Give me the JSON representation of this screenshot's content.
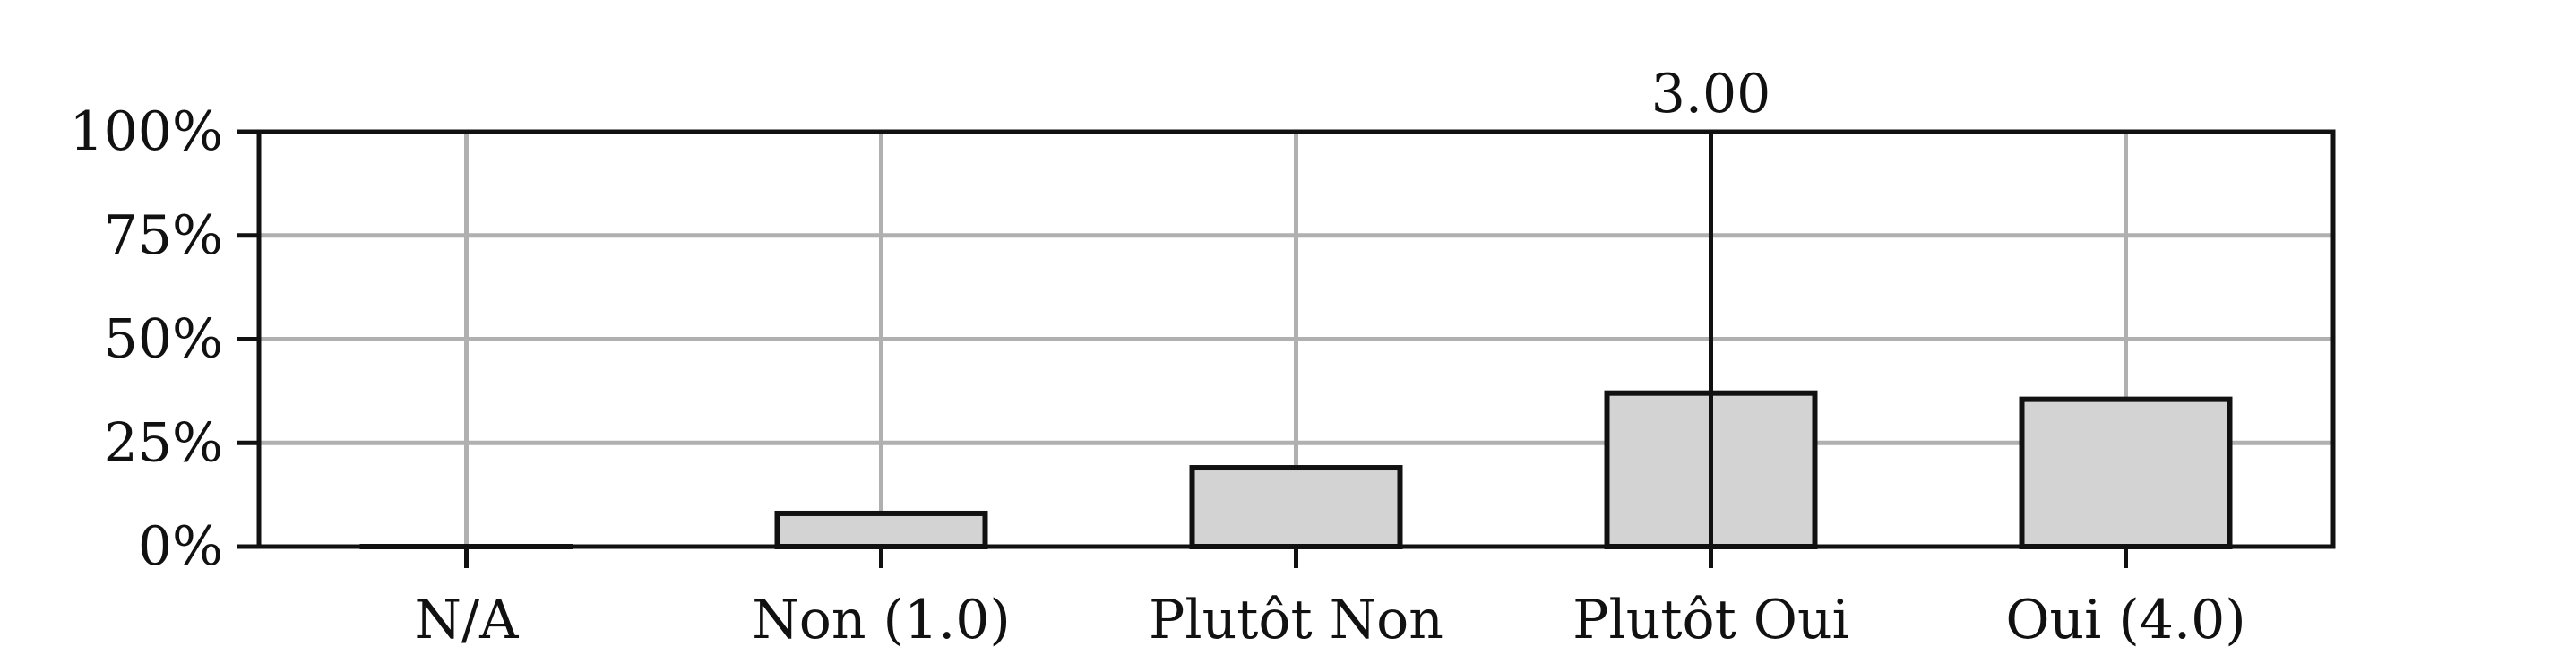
{
  "chart_data": {
    "type": "bar",
    "categories": [
      "N/A",
      "Non (1.0)",
      "Plutôt Non",
      "Plutôt Oui",
      "Oui (4.0)"
    ],
    "values": [
      0,
      8,
      19,
      37,
      35.5
    ],
    "ylim": [
      0,
      100
    ],
    "yticks": [
      0,
      25,
      50,
      75,
      100
    ],
    "ytick_labels": [
      "0%",
      "25%",
      "50%",
      "75%",
      "100%"
    ],
    "mean_marker": {
      "position": 3.0,
      "label": "3.00"
    },
    "grid": true,
    "legend": "none",
    "colors": {
      "bar_fill": "#d3d3d3",
      "bar_edge": "#111111",
      "grid": "#b0b0b0",
      "axis": "#111111"
    }
  }
}
